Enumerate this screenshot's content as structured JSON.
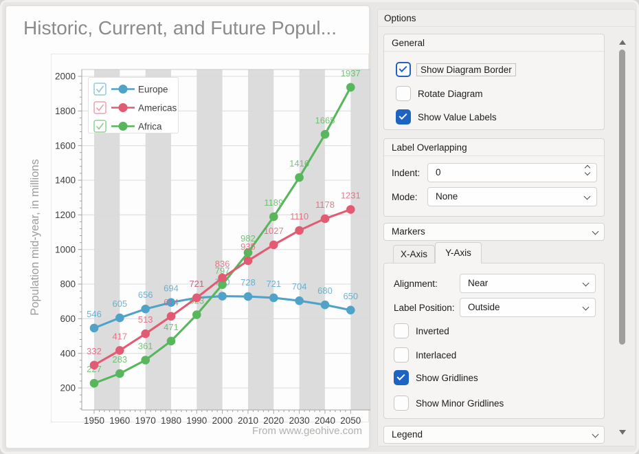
{
  "chart_data": {
    "type": "line",
    "title": "Historic, Current, and Future Popul...",
    "ylabel": "Population mid-year, in millions",
    "source_note": "From www.geohive.com",
    "x": [
      1950,
      1960,
      1970,
      1980,
      1990,
      2000,
      2010,
      2020,
      2030,
      2040,
      2050
    ],
    "yticks": [
      200,
      400,
      600,
      800,
      1000,
      1200,
      1400,
      1600,
      1800,
      2000
    ],
    "ylim": [
      73,
      2040
    ],
    "grid": "horizontal",
    "interlaced_x_bands": true,
    "value_labels_shown": true,
    "legend_position": "top-left",
    "series": [
      {
        "name": "Europe",
        "color": "#4fa3c8",
        "tint": "#8ccadf",
        "values": [
          546,
          605,
          656,
          694,
          721,
          730,
          728,
          721,
          704,
          680,
          650
        ]
      },
      {
        "name": "Americas",
        "color": "#e25b72",
        "tint": "#f0a0ac",
        "values": [
          332,
          417,
          513,
          614,
          721,
          836,
          935,
          1027,
          1110,
          1178,
          1231
        ]
      },
      {
        "name": "Africa",
        "color": "#58b65c",
        "tint": "#8fd094",
        "values": [
          227,
          283,
          361,
          471,
          623,
          797,
          982,
          1189,
          1416,
          1665,
          1937
        ]
      }
    ],
    "style": {
      "band_color": "#dcdcdc",
      "grid_color": "#dadada",
      "axis_color": "#a2a2a2",
      "diagram_border_color": "#c9c9c9",
      "tick_label_color": "#3e3e3e",
      "axis_title_color": "#9c9c9c",
      "title_color": "#8b8b8b",
      "legend_text_color": "#404040"
    }
  },
  "options_panel": {
    "title": "Options",
    "general": {
      "title": "General",
      "items": [
        {
          "label": "Show Diagram Border",
          "checked": true,
          "focused": true
        },
        {
          "label": "Rotate Diagram",
          "checked": false,
          "focused": false
        },
        {
          "label": "Show Value Labels",
          "checked": true,
          "focused": false
        }
      ]
    },
    "label_overlapping": {
      "title": "Label Overlapping",
      "indent_label": "Indent:",
      "indent_value": "0",
      "mode_label": "Mode:",
      "mode_value": "None"
    },
    "markers": {
      "title": "Markers",
      "collapsed": true
    },
    "axis_tabs": {
      "tabs": [
        "X-Axis",
        "Y-Axis"
      ],
      "active": "Y-Axis",
      "alignment_label": "Alignment:",
      "alignment_value": "Near",
      "label_position_label": "Label Position:",
      "label_position_value": "Outside",
      "items": [
        {
          "label": "Inverted",
          "checked": false
        },
        {
          "label": "Interlaced",
          "checked": false
        },
        {
          "label": "Show Gridlines",
          "checked": true
        },
        {
          "label": "Show Minor Gridlines",
          "checked": false
        }
      ]
    },
    "legend_group": {
      "title": "Legend",
      "collapsed": true
    },
    "accent_color": "#1d64c2"
  }
}
